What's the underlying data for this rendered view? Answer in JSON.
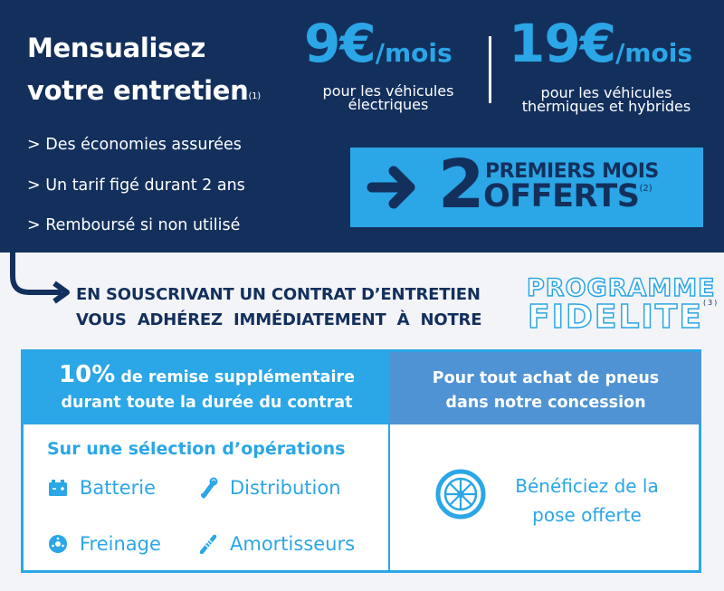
{
  "header": {
    "title_line1": "Mensualisez",
    "title_line2": "votre entretien",
    "title_note": "(1)",
    "bullets": [
      "> Des économies assurées",
      "> Un tarif figé durant 2 ans",
      "> Remboursé si non utilisé"
    ]
  },
  "prices": [
    {
      "amount": "9€",
      "unit": "/mois",
      "caption_line1": "pour les véhicules",
      "caption_line2": "électriques"
    },
    {
      "amount": "19€",
      "unit": "/mois",
      "caption_line1": "pour les véhicules",
      "caption_line2": "thermiques et hybrides"
    }
  ],
  "offer": {
    "number": "2",
    "line1": "PREMIERS MOIS",
    "line2": "OFFERTS",
    "note": "(2)",
    "icon": "arrow-right-icon"
  },
  "program": {
    "line1": "EN SOUSCRIVANT UN CONTRAT D’ENTRETIEN",
    "line2": "VOUS  ADHÉREZ  IMMÉDIATEMENT  À  NOTRE",
    "badge_line1": "PROGRAMME",
    "badge_line2": "FIDELITE",
    "badge_note": "(3)"
  },
  "left_panel": {
    "header_pct": "10%",
    "header_rest1": " de remise supplémentaire",
    "header_line2": "durant toute la durée du contrat",
    "subtitle": "Sur une sélection d’opérations",
    "operations": [
      {
        "label": "Batterie",
        "icon": "battery-icon"
      },
      {
        "label": "Distribution",
        "icon": "timing-belt-icon"
      },
      {
        "label": "Freinage",
        "icon": "brake-disc-icon"
      },
      {
        "label": "Amortisseurs",
        "icon": "shock-absorber-icon"
      }
    ]
  },
  "right_panel": {
    "header_line1": "Pour tout achat de pneus",
    "header_line2": "dans notre concession",
    "body_line1": "Bénéficiez de la",
    "body_line2": "pose offerte",
    "icon": "tire-icon"
  },
  "colors": {
    "navy": "#13305d",
    "accent": "#2ba6e6",
    "accent_dark": "#4f93d4"
  }
}
